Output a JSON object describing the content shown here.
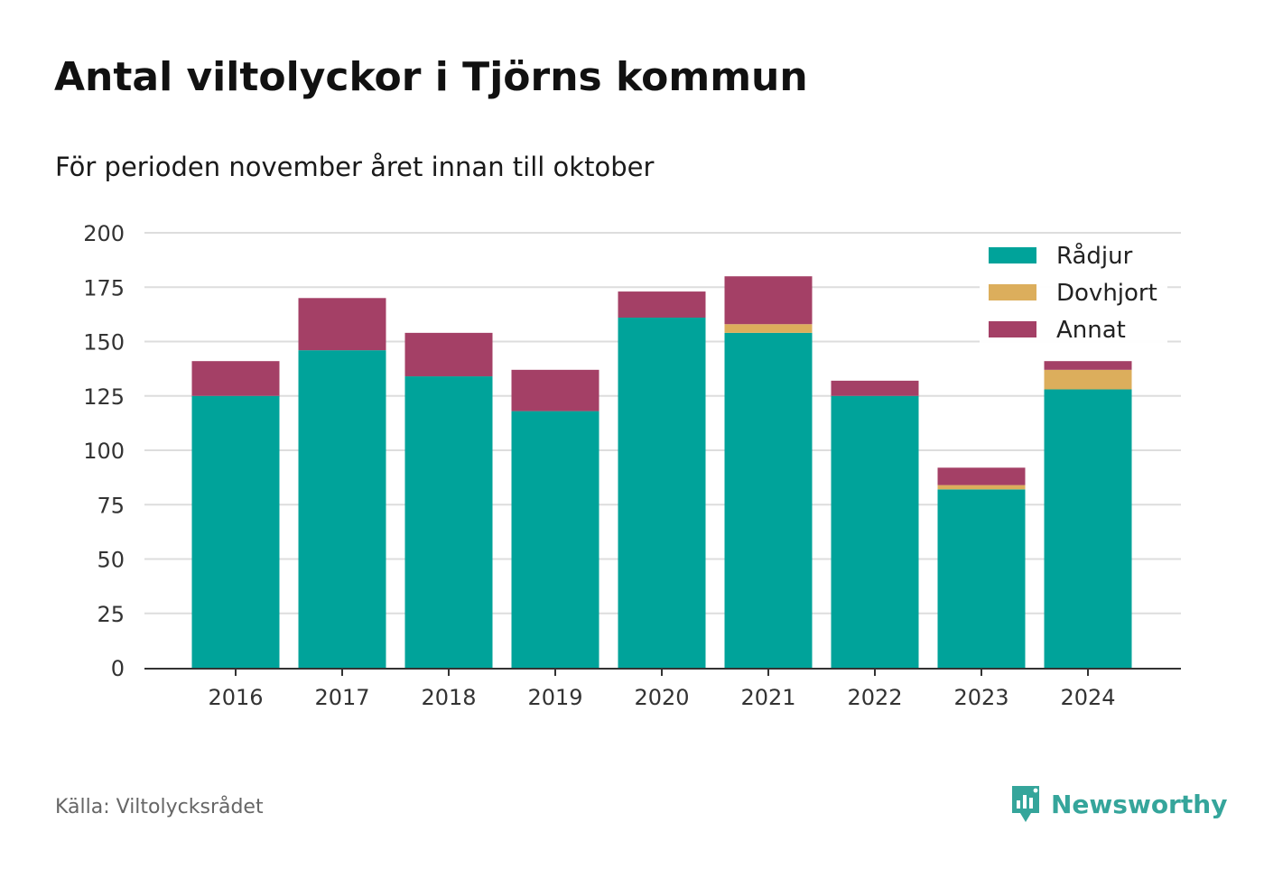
{
  "title": "Antal viltolyckor i Tjörns kommun",
  "subtitle": "För perioden november året innan till oktober",
  "source": "Källa: Viltolycksrådet",
  "brand": {
    "name": "Newsworthy",
    "icon": "newsworthy-logo-icon",
    "color": "#35a59b"
  },
  "chart_data": {
    "type": "bar",
    "stacked": true,
    "categories": [
      "2016",
      "2017",
      "2018",
      "2019",
      "2020",
      "2021",
      "2022",
      "2023",
      "2024"
    ],
    "series": [
      {
        "name": "Rådjur",
        "color": "#00a39a",
        "values": [
          125,
          146,
          134,
          118,
          161,
          154,
          125,
          82,
          128
        ]
      },
      {
        "name": "Dovhjort",
        "color": "#dcae5c",
        "values": [
          0,
          0,
          0,
          0,
          0,
          4,
          0,
          2,
          9
        ]
      },
      {
        "name": "Annat",
        "color": "#a44066",
        "values": [
          16,
          24,
          20,
          19,
          12,
          22,
          7,
          8,
          4
        ]
      }
    ],
    "ylim": [
      0,
      200
    ],
    "yticks": [
      "0",
      "25",
      "50",
      "75",
      "100",
      "125",
      "150",
      "175",
      "200"
    ],
    "xlabel": "",
    "ylabel": "",
    "grid": true,
    "legend_position": "top-right"
  }
}
